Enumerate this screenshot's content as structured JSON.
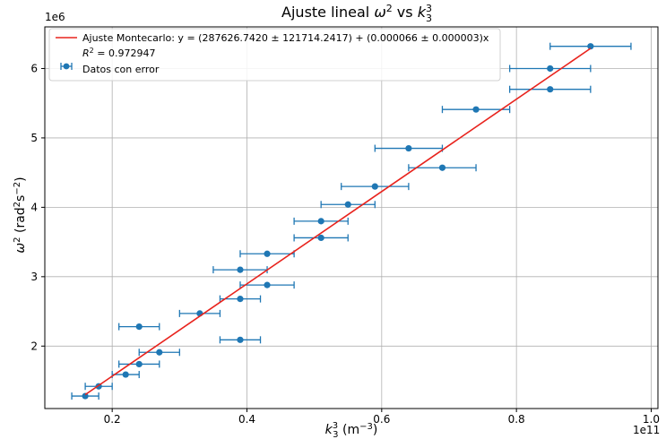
{
  "chart_data": {
    "type": "scatter",
    "title_prefix": "Ajuste lineal ",
    "title_math_a": "ω",
    "title_math_a_sup": "2",
    "title_mid": " vs ",
    "title_math_b": "k",
    "title_math_b_sup": "3",
    "title_math_b_sub": "3",
    "xlabel_math": "k",
    "xlabel_sup": "3",
    "xlabel_sub": "3",
    "xlabel_units": " (m",
    "xlabel_units_sup": "−3",
    "xlabel_units_close": ")",
    "ylabel_math": "ω",
    "ylabel_sup": "2",
    "ylabel_units": " (rad",
    "ylabel_units_sup1": "2",
    "ylabel_units_mid": "s",
    "ylabel_units_sup2": "−2",
    "ylabel_units_close": ")",
    "x_scale_label": "1e11",
    "y_scale_label": "1e6",
    "xlim": [
      0.1,
      1.01
    ],
    "ylim": [
      1.1,
      6.6
    ],
    "x_ticks": [
      0.2,
      0.4,
      0.6,
      0.8,
      1.0
    ],
    "x_tick_labels": [
      "0.2",
      "0.4",
      "0.6",
      "0.8",
      "1.0"
    ],
    "y_ticks": [
      2,
      3,
      4,
      5,
      6
    ],
    "y_tick_labels": [
      "2",
      "3",
      "4",
      "5",
      "6"
    ],
    "grid": true,
    "legend_position": "top-left",
    "series": [
      {
        "name": "Datos con error",
        "color": "#1f77b4",
        "points": [
          {
            "x": 0.16,
            "y": 1.28,
            "xerr": 0.02
          },
          {
            "x": 0.18,
            "y": 1.42,
            "xerr": 0.02
          },
          {
            "x": 0.22,
            "y": 1.59,
            "xerr": 0.02
          },
          {
            "x": 0.24,
            "y": 1.74,
            "xerr": 0.03
          },
          {
            "x": 0.27,
            "y": 1.91,
            "xerr": 0.03
          },
          {
            "x": 0.24,
            "y": 2.28,
            "xerr": 0.03
          },
          {
            "x": 0.39,
            "y": 2.09,
            "xerr": 0.03
          },
          {
            "x": 0.33,
            "y": 2.47,
            "xerr": 0.03
          },
          {
            "x": 0.39,
            "y": 2.68,
            "xerr": 0.03
          },
          {
            "x": 0.43,
            "y": 2.88,
            "xerr": 0.04
          },
          {
            "x": 0.39,
            "y": 3.1,
            "xerr": 0.04
          },
          {
            "x": 0.43,
            "y": 3.33,
            "xerr": 0.04
          },
          {
            "x": 0.51,
            "y": 3.56,
            "xerr": 0.04
          },
          {
            "x": 0.51,
            "y": 3.8,
            "xerr": 0.04
          },
          {
            "x": 0.55,
            "y": 4.04,
            "xerr": 0.04
          },
          {
            "x": 0.59,
            "y": 4.3,
            "xerr": 0.05
          },
          {
            "x": 0.69,
            "y": 4.57,
            "xerr": 0.05
          },
          {
            "x": 0.64,
            "y": 4.85,
            "xerr": 0.05
          },
          {
            "x": 0.74,
            "y": 5.41,
            "xerr": 0.05
          },
          {
            "x": 0.85,
            "y": 5.7,
            "xerr": 0.06
          },
          {
            "x": 0.85,
            "y": 6.0,
            "xerr": 0.06
          },
          {
            "x": 0.91,
            "y": 6.32,
            "xerr": 0.06
          }
        ]
      }
    ],
    "fit": {
      "name": "Ajuste Montecarlo: y = (287626.7420 ± 121714.2417) + (0.000066 ± 0.000003)x",
      "r2_label": "R",
      "r2_sup": "2",
      "r2_value": " = 0.972947",
      "color": "#e8231d",
      "x": [
        0.16,
        0.91
      ],
      "y": [
        1.3,
        6.29
      ]
    }
  }
}
